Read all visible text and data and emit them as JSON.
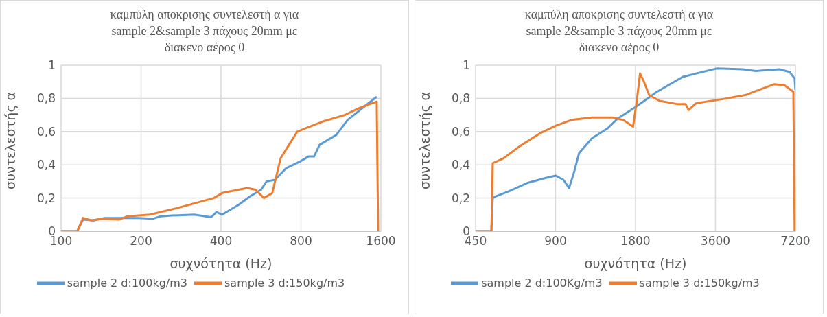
{
  "chart_data": [
    {
      "type": "line",
      "title": "καμπύλη αποκρισης συντελεστή α για\nsample 2&sample 3 πάχους 20mm με\nδιακενο αέρος 0",
      "xlabel": "συχνότητα (Hz)",
      "ylabel": "συντελεστής α",
      "log": "x",
      "grid": true,
      "legend": "bottom",
      "marker": "none",
      "line_style": "solid",
      "xlim": [
        100,
        1600
      ],
      "xticks": [
        100,
        200,
        400,
        800,
        1600
      ],
      "ylim": [
        0,
        1
      ],
      "yticks": [
        {
          "value": 0,
          "label": "0"
        },
        {
          "value": 0.2,
          "label": "0,2"
        },
        {
          "value": 0.4,
          "label": "0,4"
        },
        {
          "value": 0.6,
          "label": "0,6"
        },
        {
          "value": 0.8,
          "label": "0,8"
        },
        {
          "value": 1,
          "label": "1"
        }
      ],
      "series": [
        {
          "name": "sample 2 d:100kg/m3",
          "color": "#5b9bd5",
          "x": [
            100,
            115,
            121,
            133,
            146,
            169,
            196,
            221,
            237,
            262,
            317,
            367,
            385,
            404,
            467,
            514,
            566,
            594,
            639,
            704,
            794,
            854,
            896,
            940,
            1087,
            1198,
            1384,
            1543
          ],
          "values": [
            0,
            0,
            0.07,
            0.065,
            0.08,
            0.08,
            0.08,
            0.075,
            0.09,
            0.095,
            0.1,
            0.085,
            0.115,
            0.1,
            0.16,
            0.21,
            0.25,
            0.3,
            0.31,
            0.38,
            0.42,
            0.45,
            0.45,
            0.52,
            0.58,
            0.67,
            0.75,
            0.81
          ]
        },
        {
          "name": "sample 3 d:150kg/m3",
          "color": "#ed7d31",
          "x": [
            100,
            115,
            121,
            130,
            143,
            165,
            178,
            216,
            274,
            376,
            404,
            502,
            540,
            580,
            624,
            639,
            671,
            721,
            775,
            833,
            963,
            1169,
            1319,
            1418,
            1543,
            1562
          ],
          "values": [
            0,
            0,
            0.08,
            0.065,
            0.075,
            0.07,
            0.09,
            0.1,
            0.14,
            0.2,
            0.23,
            0.26,
            0.25,
            0.2,
            0.23,
            0.3,
            0.44,
            0.52,
            0.6,
            0.62,
            0.66,
            0.7,
            0.74,
            0.76,
            0.78,
            0
          ]
        }
      ]
    },
    {
      "type": "line",
      "title": "καμπύλη αποκρισης συντελεστή α για\nsample 2&sample 3 πάχους 20mm με\nδιακενο αέρος 0",
      "xlabel": "συχνότητα (Hz)",
      "ylabel": "συντελεστής α",
      "log": "x",
      "grid": true,
      "legend": "bottom",
      "marker": "none",
      "line_style": "solid",
      "xlim": [
        450,
        7200
      ],
      "xticks": [
        450,
        900,
        1800,
        3600,
        7200
      ],
      "ylim": [
        0,
        1
      ],
      "yticks": [
        {
          "value": 0,
          "label": "0"
        },
        {
          "value": 0.2,
          "label": "0,2"
        },
        {
          "value": 0.4,
          "label": "0,4"
        },
        {
          "value": 0.6,
          "label": "0,6"
        },
        {
          "value": 0.8,
          "label": "0,8"
        },
        {
          "value": 1,
          "label": "1"
        }
      ],
      "series": [
        {
          "name": "sample 2 d:100Kg/m3",
          "color": "#5b9bd5",
          "x": [
            450,
            516,
            522,
            536,
            600,
            703,
            823,
            900,
            963,
            1012,
            1054,
            1103,
            1234,
            1413,
            1546,
            1809,
            2167,
            2714,
            3638,
            4557,
            5101,
            6245,
            6835,
            7150,
            7200
          ],
          "values": [
            0,
            0,
            0.2,
            0.21,
            0.24,
            0.29,
            0.32,
            0.335,
            0.31,
            0.26,
            0.35,
            0.47,
            0.56,
            0.62,
            0.68,
            0.75,
            0.84,
            0.93,
            0.98,
            0.975,
            0.965,
            0.975,
            0.96,
            0.92,
            0.85
          ]
        },
        {
          "name": "sample 3 d:150kg/m3",
          "color": "#ed7d31",
          "x": [
            450,
            516,
            522,
            574,
            657,
            787,
            900,
            1031,
            1234,
            1478,
            1618,
            1762,
            1818,
            1872,
            1937,
            2025,
            2217,
            2596,
            2778,
            2853,
            3038,
            3805,
            4662,
            5217,
            5971,
            6535,
            7071,
            7150
          ],
          "values": [
            0,
            0,
            0.41,
            0.44,
            0.51,
            0.59,
            0.635,
            0.67,
            0.685,
            0.685,
            0.67,
            0.63,
            0.78,
            0.95,
            0.9,
            0.82,
            0.785,
            0.765,
            0.765,
            0.73,
            0.77,
            0.795,
            0.82,
            0.85,
            0.885,
            0.88,
            0.84,
            0
          ]
        }
      ]
    }
  ]
}
